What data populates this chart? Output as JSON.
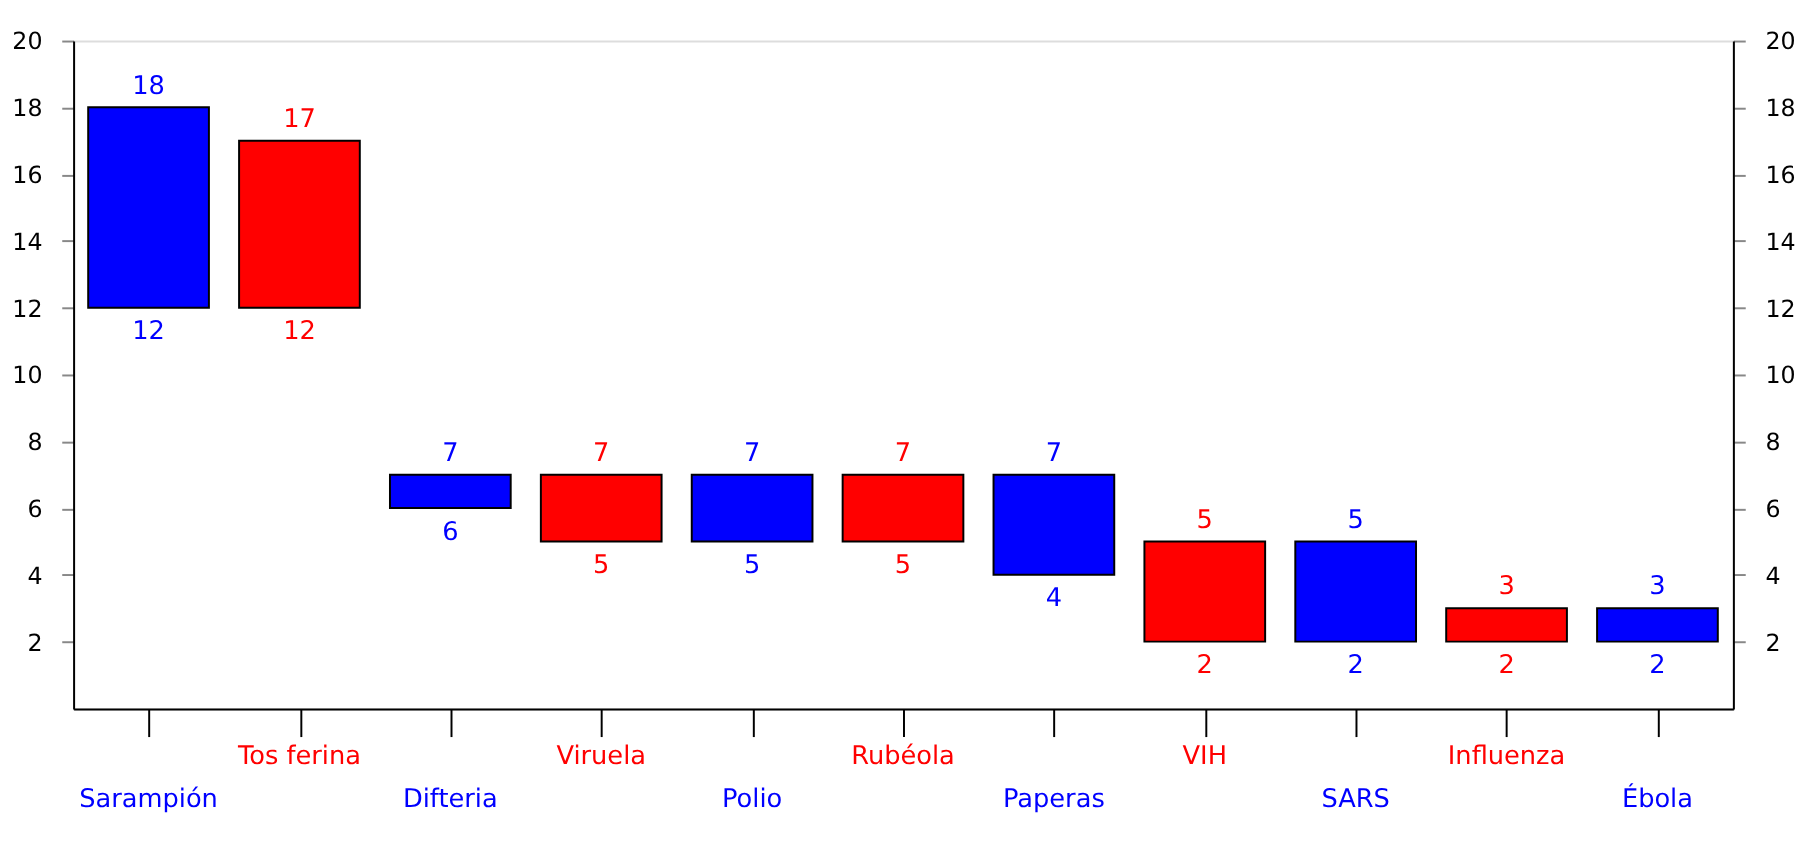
{
  "chart_data": {
    "type": "bar",
    "categories": [
      "Sarampión",
      "Tos ferina",
      "Difteria",
      "Viruela",
      "Polio",
      "Rubéola",
      "Paperas",
      "VIH",
      "SARS",
      "Influenza",
      "Ébola"
    ],
    "base": [
      12,
      12,
      6,
      5,
      5,
      5,
      4,
      2,
      2,
      2,
      2
    ],
    "values": [
      6,
      5,
      1,
      2,
      2,
      2,
      3,
      3,
      3,
      1,
      1
    ],
    "colors": [
      "#0000ff",
      "#ff0000",
      "#0000ff",
      "#ff0000",
      "#0000ff",
      "#ff0000",
      "#0000ff",
      "#ff0000",
      "#0000ff",
      "#ff0000",
      "#0000ff"
    ],
    "ylim": [
      0,
      20
    ],
    "yticks": [
      2,
      4,
      6,
      8,
      10,
      12,
      14,
      16,
      18,
      20
    ],
    "y2lim": [
      0,
      20
    ],
    "y2ticks": [
      2,
      4,
      6,
      8,
      10,
      12,
      14,
      16,
      18,
      20
    ],
    "grid": false,
    "annotations": [
      {
        "text": "18",
        "x": "Sarampión",
        "y": 18
      },
      {
        "text": "12",
        "x": "Sarampión",
        "y": 12
      },
      {
        "text": "17",
        "x": "Tos ferina",
        "y": 17
      },
      {
        "text": "12",
        "x": "Tos ferina",
        "y": 12
      },
      {
        "text": "7",
        "x": "Difteria",
        "y": 7
      },
      {
        "text": "6",
        "x": "Difteria",
        "y": 6
      },
      {
        "text": "7",
        "x": "Viruela",
        "y": 7
      },
      {
        "text": "5",
        "x": "Viruela",
        "y": 5
      },
      {
        "text": "7",
        "x": "Polio",
        "y": 7
      },
      {
        "text": "5",
        "x": "Polio",
        "y": 5
      },
      {
        "text": "7",
        "x": "Rubéola",
        "y": 7
      },
      {
        "text": "5",
        "x": "Rubéola",
        "y": 5
      },
      {
        "text": "7",
        "x": "Paperas",
        "y": 7
      },
      {
        "text": "4",
        "x": "Paperas",
        "y": 4
      },
      {
        "text": "5",
        "x": "VIH",
        "y": 5
      },
      {
        "text": "2",
        "x": "VIH",
        "y": 2
      },
      {
        "text": "5",
        "x": "SARS",
        "y": 5
      },
      {
        "text": "2",
        "x": "SARS",
        "y": 2
      },
      {
        "text": "3",
        "x": "Influenza",
        "y": 3
      },
      {
        "text": "2",
        "x": "Influenza",
        "y": 2
      },
      {
        "text": "3",
        "x": "Ébola",
        "y": 3
      },
      {
        "text": "2",
        "x": "Ébola",
        "y": 2
      }
    ]
  }
}
